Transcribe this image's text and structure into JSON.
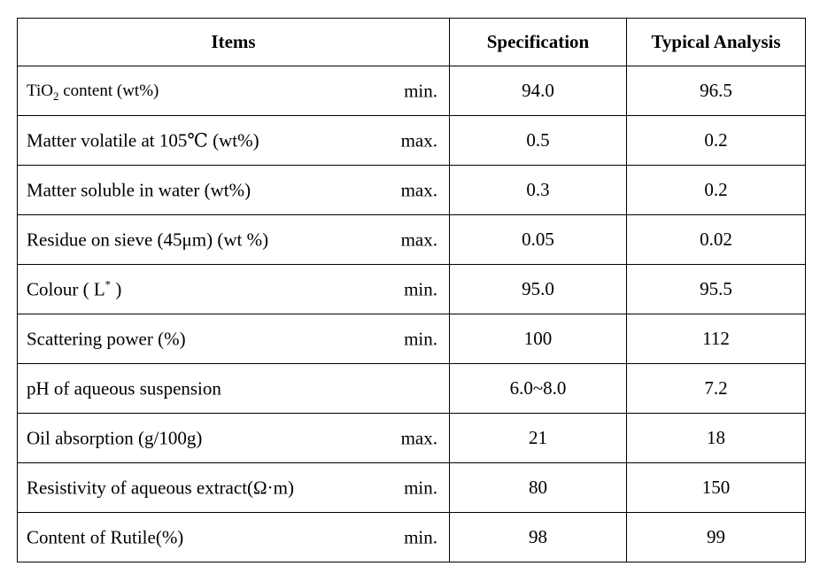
{
  "table": {
    "headers": {
      "items": "Items",
      "specification": "Specification",
      "typical": "Typical Analysis"
    },
    "rows": [
      {
        "item_prefix": "TiO",
        "item_sub": "2",
        "item_suffix": " content (wt%)",
        "limit": "min.",
        "specification": "94.0",
        "typical": "96.5"
      },
      {
        "item": "Matter volatile at 105℃ (wt%)",
        "limit": "max.",
        "specification": "0.5",
        "typical": "0.2"
      },
      {
        "item": "Matter soluble in water (wt%)",
        "limit": "max.",
        "specification": "0.3",
        "typical": "0.2"
      },
      {
        "item": "Residue on sieve (45μm) (wt %)",
        "limit": "max.",
        "specification": "0.05",
        "typical": "0.02"
      },
      {
        "item_prefix": "Colour ( L",
        "item_sup": "*",
        "item_suffix": " )",
        "limit": "min.",
        "specification": "95.0",
        "typical": "95.5"
      },
      {
        "item": "Scattering power (%)",
        "limit": "min.",
        "specification": "100",
        "typical": "112"
      },
      {
        "item": "pH of aqueous suspension",
        "limit": "",
        "specification": "6.0~8.0",
        "typical": "7.2"
      },
      {
        "item": "Oil absorption (g/100g)",
        "limit": "max.",
        "specification": "21",
        "typical": "18"
      },
      {
        "item": "Resistivity of aqueous extract(Ω·m)",
        "limit": "min.",
        "specification": "80",
        "typical": "150"
      },
      {
        "item": "Content of Rutile(%)",
        "limit": "min.",
        "specification": "98",
        "typical": "99"
      }
    ]
  }
}
